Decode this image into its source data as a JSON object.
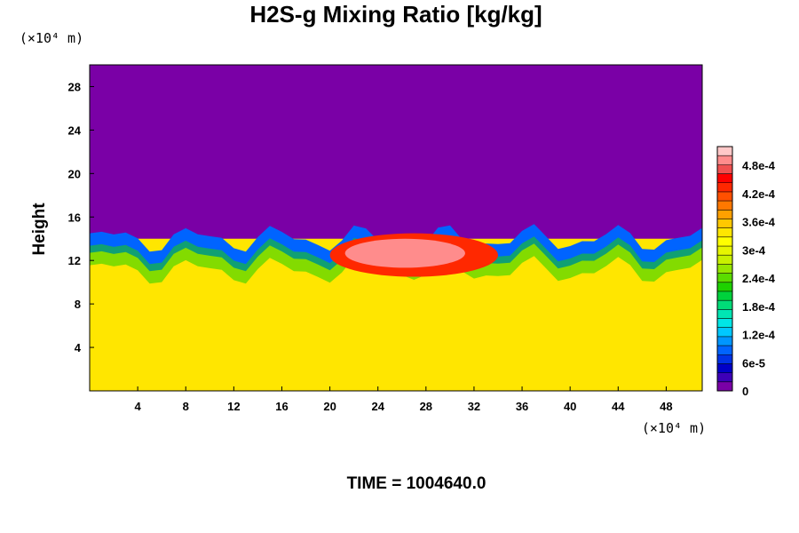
{
  "chart_data": {
    "type": "heatmap",
    "title": "H2S-g Mixing Ratio [kg/kg]",
    "ylabel": "Height",
    "x_unit": "(×10⁴ m)",
    "y_unit": "(×10⁴ m)",
    "x_ticks": [
      "4",
      "8",
      "12",
      "16",
      "20",
      "24",
      "28",
      "32",
      "36",
      "40",
      "44",
      "48"
    ],
    "x_tick_values": [
      4,
      8,
      12,
      16,
      20,
      24,
      28,
      32,
      36,
      40,
      44,
      48
    ],
    "y_ticks": [
      "4",
      "8",
      "12",
      "16",
      "20",
      "24",
      "28"
    ],
    "y_tick_values": [
      4,
      8,
      12,
      16,
      20,
      24,
      28
    ],
    "xlim": [
      0,
      51
    ],
    "ylim": [
      0,
      30
    ],
    "footer": "TIME = 1004640.0",
    "colorbar": {
      "range": [
        0,
        0.00052
      ],
      "tick_labels": [
        "0",
        "6e-5",
        "1.2e-4",
        "1.8e-4",
        "2.4e-4",
        "3e-4",
        "3.6e-4",
        "4.2e-4",
        "4.8e-4"
      ],
      "tick_values": [
        0,
        6e-05,
        0.00012,
        0.00018,
        0.00024,
        0.0003,
        0.00036,
        0.00042,
        0.00048
      ],
      "colors": [
        "#7a00a6",
        "#3d00b8",
        "#0000c8",
        "#0032e6",
        "#0064ff",
        "#0096ff",
        "#00c8ff",
        "#00e6e6",
        "#00e6b4",
        "#00dc78",
        "#00d23c",
        "#1ed200",
        "#5adc00",
        "#96e600",
        "#c8f000",
        "#e6f500",
        "#ffff00",
        "#ffe600",
        "#ffc800",
        "#ffa000",
        "#ff7800",
        "#ff5000",
        "#ff2800",
        "#ff0000",
        "#f05050",
        "#ff8c8c",
        "#ffc8c8"
      ]
    },
    "fields": {
      "upper_value": 0,
      "lower_value": 0.00034,
      "interface_height": 14,
      "plume_value": 0.0005,
      "plume_x_range": [
        20,
        34
      ],
      "plume_height_range": [
        10.5,
        14.5
      ]
    }
  }
}
